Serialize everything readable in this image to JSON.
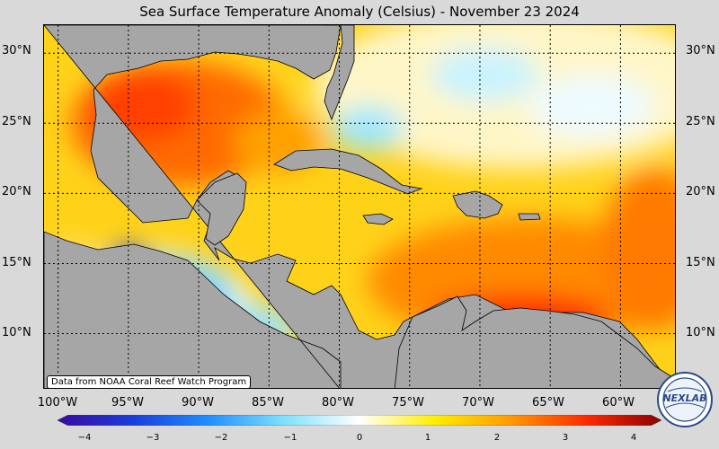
{
  "title": "Sea Surface Temperature Anomaly (Celsius) - November 23 2024",
  "credit": "Data from NOAA Coral Reef Watch Program",
  "logo_text": "NEXLAB",
  "colors": {
    "land": "#a6a6a6",
    "ocean_base": "#ffd21a",
    "grid": "#000000"
  },
  "map": {
    "lat_ticks": [
      "30°N",
      "25°N",
      "20°N",
      "15°N",
      "10°N"
    ],
    "lon_ticks": [
      "100°W",
      "95°W",
      "90°W",
      "85°W",
      "80°W",
      "75°W",
      "70°W",
      "65°W",
      "60°W"
    ],
    "lon_range": [
      -101,
      -56
    ],
    "lat_range": [
      6,
      32
    ]
  },
  "colorbar": {
    "min": -4,
    "max": 4,
    "tick_labels": [
      "−4",
      "−3",
      "−2",
      "−1",
      "0",
      "1",
      "2",
      "3",
      "4"
    ],
    "stops": [
      "#3b0aa0",
      "#1a3ddc",
      "#1f8fff",
      "#7fe1ff",
      "#ffffff",
      "#ffee00",
      "#ff9a00",
      "#ff2a00",
      "#8b0000"
    ]
  }
}
